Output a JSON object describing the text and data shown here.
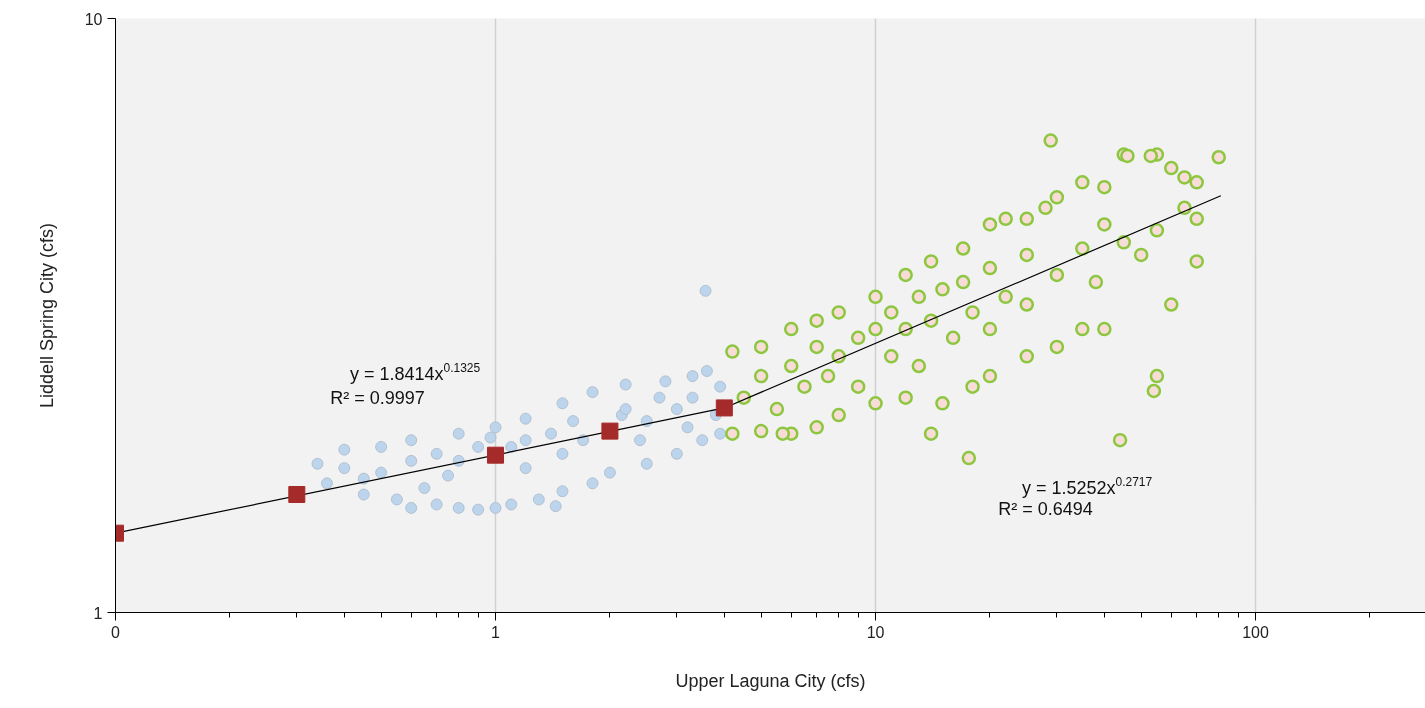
{
  "chart_data": {
    "type": "scatter",
    "xlabel": "Upper Laguna City (cfs)",
    "ylabel": "Liddell Spring City (cfs)",
    "log": "xy",
    "grid": "x",
    "xlim": [
      0.1,
      280
    ],
    "ylim": [
      1,
      10
    ],
    "xticks": [
      {
        "value": 0.1,
        "label": "0"
      },
      {
        "value": 0.2,
        "label": null
      },
      {
        "value": 0.3,
        "label": null
      },
      {
        "value": 0.4,
        "label": null
      },
      {
        "value": 0.5,
        "label": null
      },
      {
        "value": 0.6,
        "label": null
      },
      {
        "value": 0.7,
        "label": null
      },
      {
        "value": 0.8,
        "label": null
      },
      {
        "value": 0.9,
        "label": null
      },
      1,
      {
        "value": 2,
        "label": null
      },
      {
        "value": 3,
        "label": null
      },
      {
        "value": 4,
        "label": null
      },
      {
        "value": 5,
        "label": null
      },
      {
        "value": 6,
        "label": null
      },
      {
        "value": 7,
        "label": null
      },
      {
        "value": 8,
        "label": null
      },
      {
        "value": 9,
        "label": null
      },
      10,
      {
        "value": 20,
        "label": null
      },
      {
        "value": 30,
        "label": null
      },
      {
        "value": 40,
        "label": null
      },
      {
        "value": 50,
        "label": null
      },
      {
        "value": 60,
        "label": null
      },
      {
        "value": 70,
        "label": null
      },
      {
        "value": 80,
        "label": null
      },
      {
        "value": 90,
        "label": null
      },
      100,
      {
        "value": 200,
        "label": null
      }
    ],
    "yticks": [
      1,
      10
    ],
    "annotations": [
      "y = 1.8414x$^{0.1325}$",
      "R² = 0.9997",
      "y = 1.5252x$^{0.2717}$",
      "R² = 0.6494"
    ],
    "series": [
      {
        "marker": "circle",
        "color": "#bcd4ec",
        "x": [
          0.34,
          0.4,
          0.5,
          0.6,
          0.8,
          1.0,
          1.2,
          1.5,
          1.8,
          2.2,
          2.8,
          3.3,
          3.6,
          0.36,
          0.45,
          0.55,
          0.6,
          0.7,
          0.8,
          0.9,
          1.0,
          1.1,
          1.3,
          1.5,
          1.8,
          2.0,
          2.5,
          3.0,
          3.5,
          3.9,
          3.57,
          1.44,
          0.4,
          0.5,
          0.6,
          0.7,
          0.8,
          0.9,
          0.97,
          1.1,
          1.2,
          1.4,
          1.6,
          1.7,
          2.15,
          2.2,
          2.5,
          2.7,
          3.0,
          3.3,
          3.8,
          3.9,
          0.45,
          0.65,
          0.75,
          1.2,
          1.5,
          2.4,
          3.2
        ],
        "values": [
          1.78,
          1.88,
          1.9,
          1.95,
          2.0,
          2.05,
          2.12,
          2.25,
          2.35,
          2.42,
          2.45,
          2.5,
          2.55,
          1.65,
          1.58,
          1.55,
          1.5,
          1.52,
          1.5,
          1.49,
          1.5,
          1.52,
          1.55,
          1.6,
          1.65,
          1.72,
          1.78,
          1.85,
          1.95,
          2.0,
          3.48,
          1.51,
          1.75,
          1.72,
          1.8,
          1.85,
          1.8,
          1.9,
          1.97,
          1.9,
          1.95,
          2.0,
          2.1,
          1.95,
          2.15,
          2.2,
          2.1,
          2.3,
          2.2,
          2.3,
          2.15,
          2.4,
          1.68,
          1.62,
          1.7,
          1.75,
          1.85,
          1.95,
          2.05
        ]
      },
      {
        "marker": "circle",
        "color": "#8dc63f",
        "x": [
          4.2,
          5,
          6,
          7,
          8,
          10,
          12,
          14,
          17,
          20,
          22,
          25,
          28,
          30,
          35,
          40,
          45,
          55,
          60,
          65,
          70,
          4.2,
          5,
          6,
          7,
          8,
          10,
          12,
          15,
          18,
          20,
          25,
          30,
          35,
          40,
          55,
          60,
          70,
          4.5,
          5,
          5.5,
          6,
          6.5,
          7,
          7.5,
          8,
          9,
          9,
          10,
          11,
          11,
          12,
          13,
          13,
          14,
          15,
          16,
          17,
          18,
          20,
          20,
          22,
          25,
          25,
          30,
          35,
          38,
          40,
          45,
          50,
          55,
          65,
          70,
          28.9,
          80,
          17.6,
          44,
          54,
          14,
          5.7,
          46,
          53
        ],
        "values": [
          2.75,
          2.8,
          3.0,
          3.1,
          3.2,
          3.4,
          3.7,
          3.9,
          4.1,
          4.5,
          4.6,
          4.6,
          4.8,
          5.0,
          5.3,
          5.2,
          5.9,
          5.9,
          5.6,
          5.4,
          5.3,
          2.0,
          2.02,
          2.0,
          2.05,
          2.15,
          2.25,
          2.3,
          2.25,
          2.4,
          2.5,
          2.7,
          2.8,
          3.0,
          3.0,
          2.5,
          3.3,
          3.9,
          2.3,
          2.5,
          2.2,
          2.6,
          2.4,
          2.8,
          2.5,
          2.7,
          2.9,
          2.4,
          3.0,
          2.7,
          3.2,
          3.0,
          3.4,
          2.6,
          3.1,
          3.5,
          2.9,
          3.6,
          3.2,
          3.8,
          3.0,
          3.4,
          4.0,
          3.3,
          3.7,
          4.1,
          3.6,
          4.5,
          4.2,
          4.0,
          4.4,
          4.8,
          4.6,
          6.23,
          5.84,
          1.82,
          1.95,
          2.36,
          2.0,
          2.0,
          5.87,
          5.87
        ]
      },
      {
        "type": "line",
        "color": "#000000",
        "x": [
          0.1,
          4,
          81
        ],
        "values": [
          1.36,
          2.21,
          5.03
        ]
      },
      {
        "type": "scatter",
        "marker": "square",
        "color": "#a52a2a",
        "x": [
          0.1,
          0.3,
          1,
          2,
          4
        ],
        "values": [
          1.36,
          1.58,
          1.84,
          2.02,
          2.21
        ]
      }
    ]
  }
}
